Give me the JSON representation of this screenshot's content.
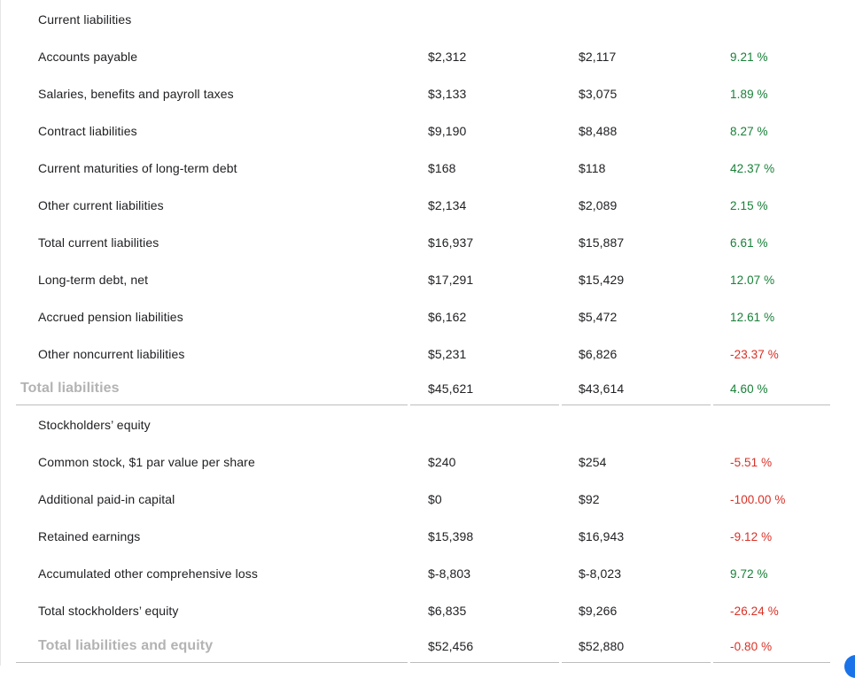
{
  "sections": {
    "liabilities_header": "Current liabilities",
    "equity_header": "Stockholders’ equity"
  },
  "liabilities_rows": [
    {
      "label": "Accounts payable",
      "v1": "$2,312",
      "v2": "$2,117",
      "pct": "9.21 %",
      "sign": "pos"
    },
    {
      "label": "Salaries, benefits and payroll taxes",
      "v1": "$3,133",
      "v2": "$3,075",
      "pct": "1.89 %",
      "sign": "pos"
    },
    {
      "label": "Contract liabilities",
      "v1": "$9,190",
      "v2": "$8,488",
      "pct": "8.27 %",
      "sign": "pos"
    },
    {
      "label": "Current maturities of long-term debt",
      "v1": "$168",
      "v2": "$118",
      "pct": "42.37 %",
      "sign": "pos"
    },
    {
      "label": "Other current liabilities",
      "v1": "$2,134",
      "v2": "$2,089",
      "pct": "2.15 %",
      "sign": "pos"
    },
    {
      "label": "Total current liabilities",
      "v1": "$16,937",
      "v2": "$15,887",
      "pct": "6.61 %",
      "sign": "pos"
    },
    {
      "label": "Long-term debt, net",
      "v1": "$17,291",
      "v2": "$15,429",
      "pct": "12.07 %",
      "sign": "pos"
    },
    {
      "label": "Accrued pension liabilities",
      "v1": "$6,162",
      "v2": "$5,472",
      "pct": "12.61 %",
      "sign": "pos"
    },
    {
      "label": "Other noncurrent liabilities",
      "v1": "$5,231",
      "v2": "$6,826",
      "pct": "-23.37 %",
      "sign": "neg"
    }
  ],
  "total_liabilities": {
    "label": "Total liabilities",
    "v1": "$45,621",
    "v2": "$43,614",
    "pct": "4.60 %",
    "sign": "pos"
  },
  "equity_rows": [
    {
      "label": "Common stock, $1 par value per share",
      "v1": "$240",
      "v2": "$254",
      "pct": "-5.51 %",
      "sign": "neg"
    },
    {
      "label": "Additional paid-in capital",
      "v1": "$0",
      "v2": "$92",
      "pct": "-100.00 %",
      "sign": "neg"
    },
    {
      "label": "Retained earnings",
      "v1": "$15,398",
      "v2": "$16,943",
      "pct": "-9.12 %",
      "sign": "neg"
    },
    {
      "label": "Accumulated other comprehensive loss",
      "v1": "$-8,803",
      "v2": "$-8,023",
      "pct": "9.72 %",
      "sign": "pos"
    },
    {
      "label": "Total stockholders’ equity",
      "v1": "$6,835",
      "v2": "$9,266",
      "pct": "-26.24 %",
      "sign": "neg"
    }
  ],
  "total_liabilities_equity": {
    "label": "Total liabilities and equity",
    "v1": "$52,456",
    "v2": "$52,880",
    "pct": "-0.80 %",
    "sign": "neg"
  },
  "colors": {
    "positive": "#188038",
    "negative": "#d93025",
    "total_label": "#b3b3b3",
    "accent": "#1a73e8"
  }
}
